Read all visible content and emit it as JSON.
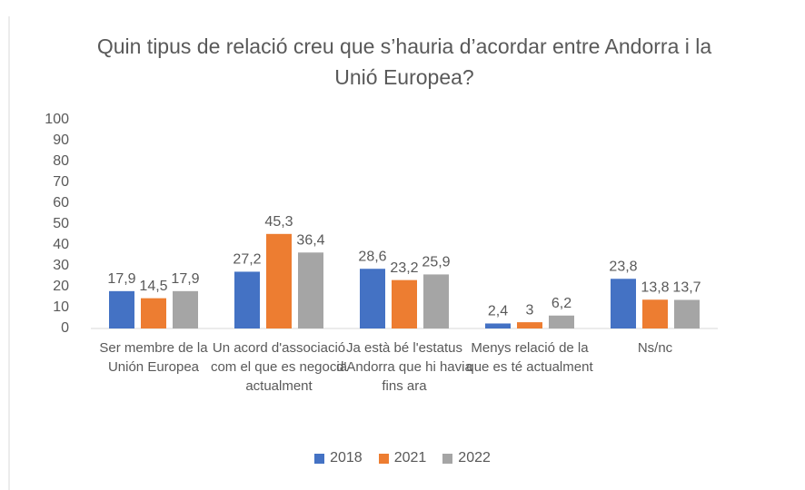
{
  "chart_data": {
    "type": "bar",
    "title": "Quin tipus de relació creu que s’hauria d’acordar entre Andorra i la Unió Europea?",
    "categories": [
      "Ser membre de la Unión Europea",
      "Un acord d'associació com el que es negocia actualment",
      "Ja està bé l'estatus d'Andorra que hi havia fins ara",
      "Menys relació de la que es té actualment",
      "Ns/nc"
    ],
    "series": [
      {
        "name": "2018",
        "color": "#4472c4",
        "values": [
          17.9,
          27.2,
          28.6,
          2.4,
          23.8
        ],
        "value_labels": [
          "17,9",
          "27,2",
          "28,6",
          "2,4",
          "23,8"
        ]
      },
      {
        "name": "2021",
        "color": "#ed7d31",
        "values": [
          14.5,
          45.3,
          23.2,
          3,
          13.8
        ],
        "value_labels": [
          "14,5",
          "45,3",
          "23,2",
          "3",
          "13,8"
        ]
      },
      {
        "name": "2022",
        "color": "#a5a5a5",
        "values": [
          17.9,
          36.4,
          25.9,
          6.2,
          13.7
        ],
        "value_labels": [
          "17,9",
          "36,4",
          "25,9",
          "6,2",
          "13,7"
        ]
      }
    ],
    "ylim": [
      0,
      100
    ],
    "yticks": [
      0,
      10,
      20,
      30,
      40,
      50,
      60,
      70,
      80,
      90,
      100
    ],
    "grid": false,
    "legend": "bottom"
  }
}
